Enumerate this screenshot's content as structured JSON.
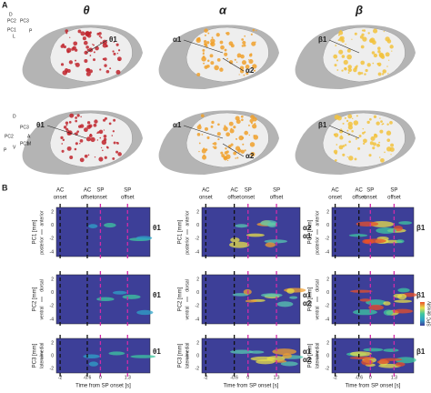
{
  "panel_a": {
    "label": "A",
    "columns": [
      {
        "symbol": "θ",
        "top": [
          "θ1"
        ],
        "bottom": [
          "θ1"
        ]
      },
      {
        "symbol": "α",
        "top": [
          "α1",
          "α2"
        ],
        "bottom": [
          "α1",
          "α2"
        ]
      },
      {
        "symbol": "β",
        "top": [
          "β1"
        ],
        "bottom": [
          "β1"
        ]
      }
    ],
    "orient_top": [
      "D",
      "PC2",
      "PC3",
      "PC1",
      "L",
      "P"
    ],
    "orient_bottom": [
      "D",
      "PC2",
      "PC3",
      "V",
      "P",
      "A",
      "M",
      "PC1"
    ]
  },
  "panel_b": {
    "label": "B",
    "events": [
      [
        "AC",
        "onset"
      ],
      [
        "AC",
        "offset"
      ],
      [
        "SP",
        "onset"
      ],
      [
        "SP",
        "offset"
      ]
    ],
    "xticks": [
      "-2",
      "-0.6",
      "0",
      "1.3"
    ],
    "xlabel": "Time from SP onset [s]",
    "rows": [
      {
        "axis": "PC1 [mm]",
        "pos": "anterior",
        "neg": "posterior",
        "yticks": [
          "2",
          "0",
          "-2",
          "-4"
        ]
      },
      {
        "axis": "PC2 [mm]",
        "pos": "dorsal",
        "neg": "ventral",
        "yticks": [
          "2",
          "0",
          "-2",
          "-4"
        ]
      },
      {
        "axis": "PC3 [mm]",
        "pos": "medial",
        "neg": "lateral",
        "yticks": [
          "2",
          "0",
          "-2"
        ]
      }
    ],
    "labels": [
      [
        [
          "θ1"
        ],
        [
          "θ1"
        ],
        [
          "θ1"
        ]
      ],
      [
        [
          "α2",
          "α1"
        ],
        [
          "α1",
          "α2"
        ],
        [
          "α1",
          "α2"
        ]
      ],
      [
        [
          "β1"
        ],
        [
          "β1"
        ],
        [
          "β1"
        ]
      ]
    ],
    "colorbar": "SPC density"
  }
}
